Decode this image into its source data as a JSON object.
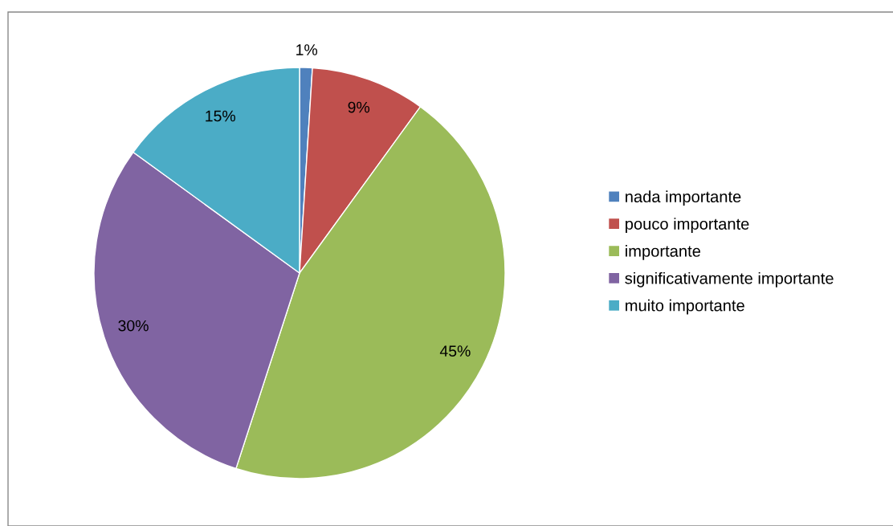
{
  "chart_data": {
    "type": "pie",
    "categories": [
      "nada importante",
      "pouco importante",
      "importante",
      "significativamente importante",
      "muito importante"
    ],
    "values": [
      1,
      9,
      45,
      30,
      15
    ],
    "colors": [
      "#4f81bd",
      "#c0504d",
      "#9bbb59",
      "#8064a2",
      "#4bacc6"
    ],
    "value_labels": [
      "1%",
      "9%",
      "45%",
      "30%",
      "15%"
    ],
    "legend": "right"
  }
}
